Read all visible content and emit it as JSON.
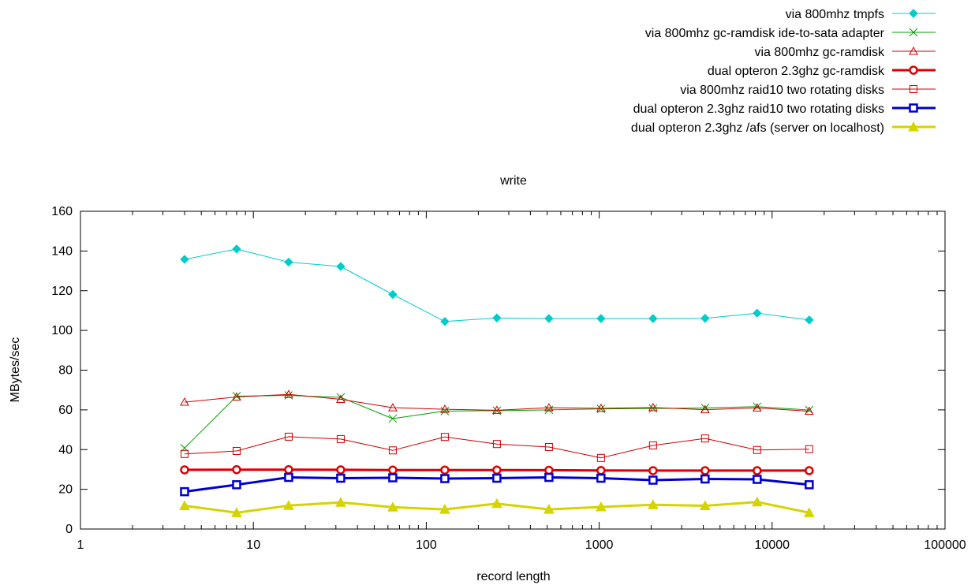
{
  "chart_data": {
    "type": "line",
    "title": "write",
    "xlabel": "record length",
    "ylabel": "MBytes/sec",
    "x_scale": "log",
    "xlim": [
      1,
      100000
    ],
    "ylim": [
      0,
      160
    ],
    "x_ticks": [
      {
        "value": 1,
        "label": "1"
      },
      {
        "value": 10,
        "label": "10"
      },
      {
        "value": 100,
        "label": "100"
      },
      {
        "value": 1000,
        "label": "1000"
      },
      {
        "value": 10000,
        "label": "10000"
      },
      {
        "value": 100000,
        "label": "100000"
      }
    ],
    "y_ticks": [
      {
        "value": 0,
        "label": "0"
      },
      {
        "value": 20,
        "label": "20"
      },
      {
        "value": 40,
        "label": "40"
      },
      {
        "value": 60,
        "label": "60"
      },
      {
        "value": 80,
        "label": "80"
      },
      {
        "value": 100,
        "label": "100"
      },
      {
        "value": 120,
        "label": "120"
      },
      {
        "value": 140,
        "label": "140"
      },
      {
        "value": 160,
        "label": "160"
      }
    ],
    "grid": false,
    "legend_position": "top-right, above plot",
    "x": [
      4,
      8,
      16,
      32,
      64,
      128,
      256,
      512,
      1024,
      2048,
      4096,
      8192,
      16384
    ],
    "series": [
      {
        "name": "via 800mhz tmpfs",
        "color": "#00cccc",
        "marker": "filled-diamond",
        "line": "thin",
        "values": [
          135.8,
          141.0,
          134.4,
          132.2,
          118.1,
          104.5,
          106.3,
          106.0,
          106.0,
          106.0,
          106.1,
          108.7,
          105.3
        ]
      },
      {
        "name": "via 800mhz gc-ramdisk ide-to-sata adapter",
        "color": "#00a000",
        "marker": "cross",
        "line": "thin",
        "values": [
          40.8,
          66.9,
          67.3,
          66.3,
          55.6,
          59.4,
          59.6,
          60.0,
          60.5,
          60.7,
          61.0,
          61.6,
          59.9
        ]
      },
      {
        "name": "via 800mhz gc-ramdisk",
        "color": "#cc0000",
        "marker": "open-triangle",
        "line": "thin",
        "values": [
          63.9,
          66.5,
          67.8,
          65.3,
          61.1,
          60.3,
          59.8,
          61.1,
          60.8,
          61.2,
          60.1,
          61.0,
          59.3
        ]
      },
      {
        "name": "dual opteron 2.3ghz gc-ramdisk",
        "color": "#dd0000",
        "marker": "open-circle",
        "line": "thick",
        "values": [
          29.8,
          29.9,
          29.9,
          29.8,
          29.7,
          29.7,
          29.7,
          29.6,
          29.5,
          29.4,
          29.4,
          29.4,
          29.4
        ]
      },
      {
        "name": "via 800mhz raid10 two rotating disks",
        "color": "#cc0000",
        "marker": "open-square",
        "line": "thin",
        "values": [
          37.8,
          39.3,
          46.5,
          45.3,
          39.6,
          46.4,
          42.8,
          41.3,
          35.8,
          42.1,
          45.6,
          39.8,
          40.2
        ]
      },
      {
        "name": "dual opteron 2.3ghz raid10 two rotating disks",
        "color": "#0000cc",
        "marker": "open-square",
        "line": "thick",
        "values": [
          18.8,
          22.3,
          26.0,
          25.6,
          25.8,
          25.4,
          25.6,
          26.0,
          25.6,
          24.6,
          25.2,
          25.0,
          22.3
        ]
      },
      {
        "name": "dual opteron 2.3ghz /afs (server on localhost)",
        "color": "#d4d400",
        "marker": "filled-triangle",
        "line": "thick",
        "values": [
          11.7,
          8.2,
          11.8,
          13.4,
          11.0,
          9.9,
          12.8,
          9.9,
          11.1,
          12.2,
          11.7,
          13.6,
          8.2
        ]
      }
    ]
  }
}
